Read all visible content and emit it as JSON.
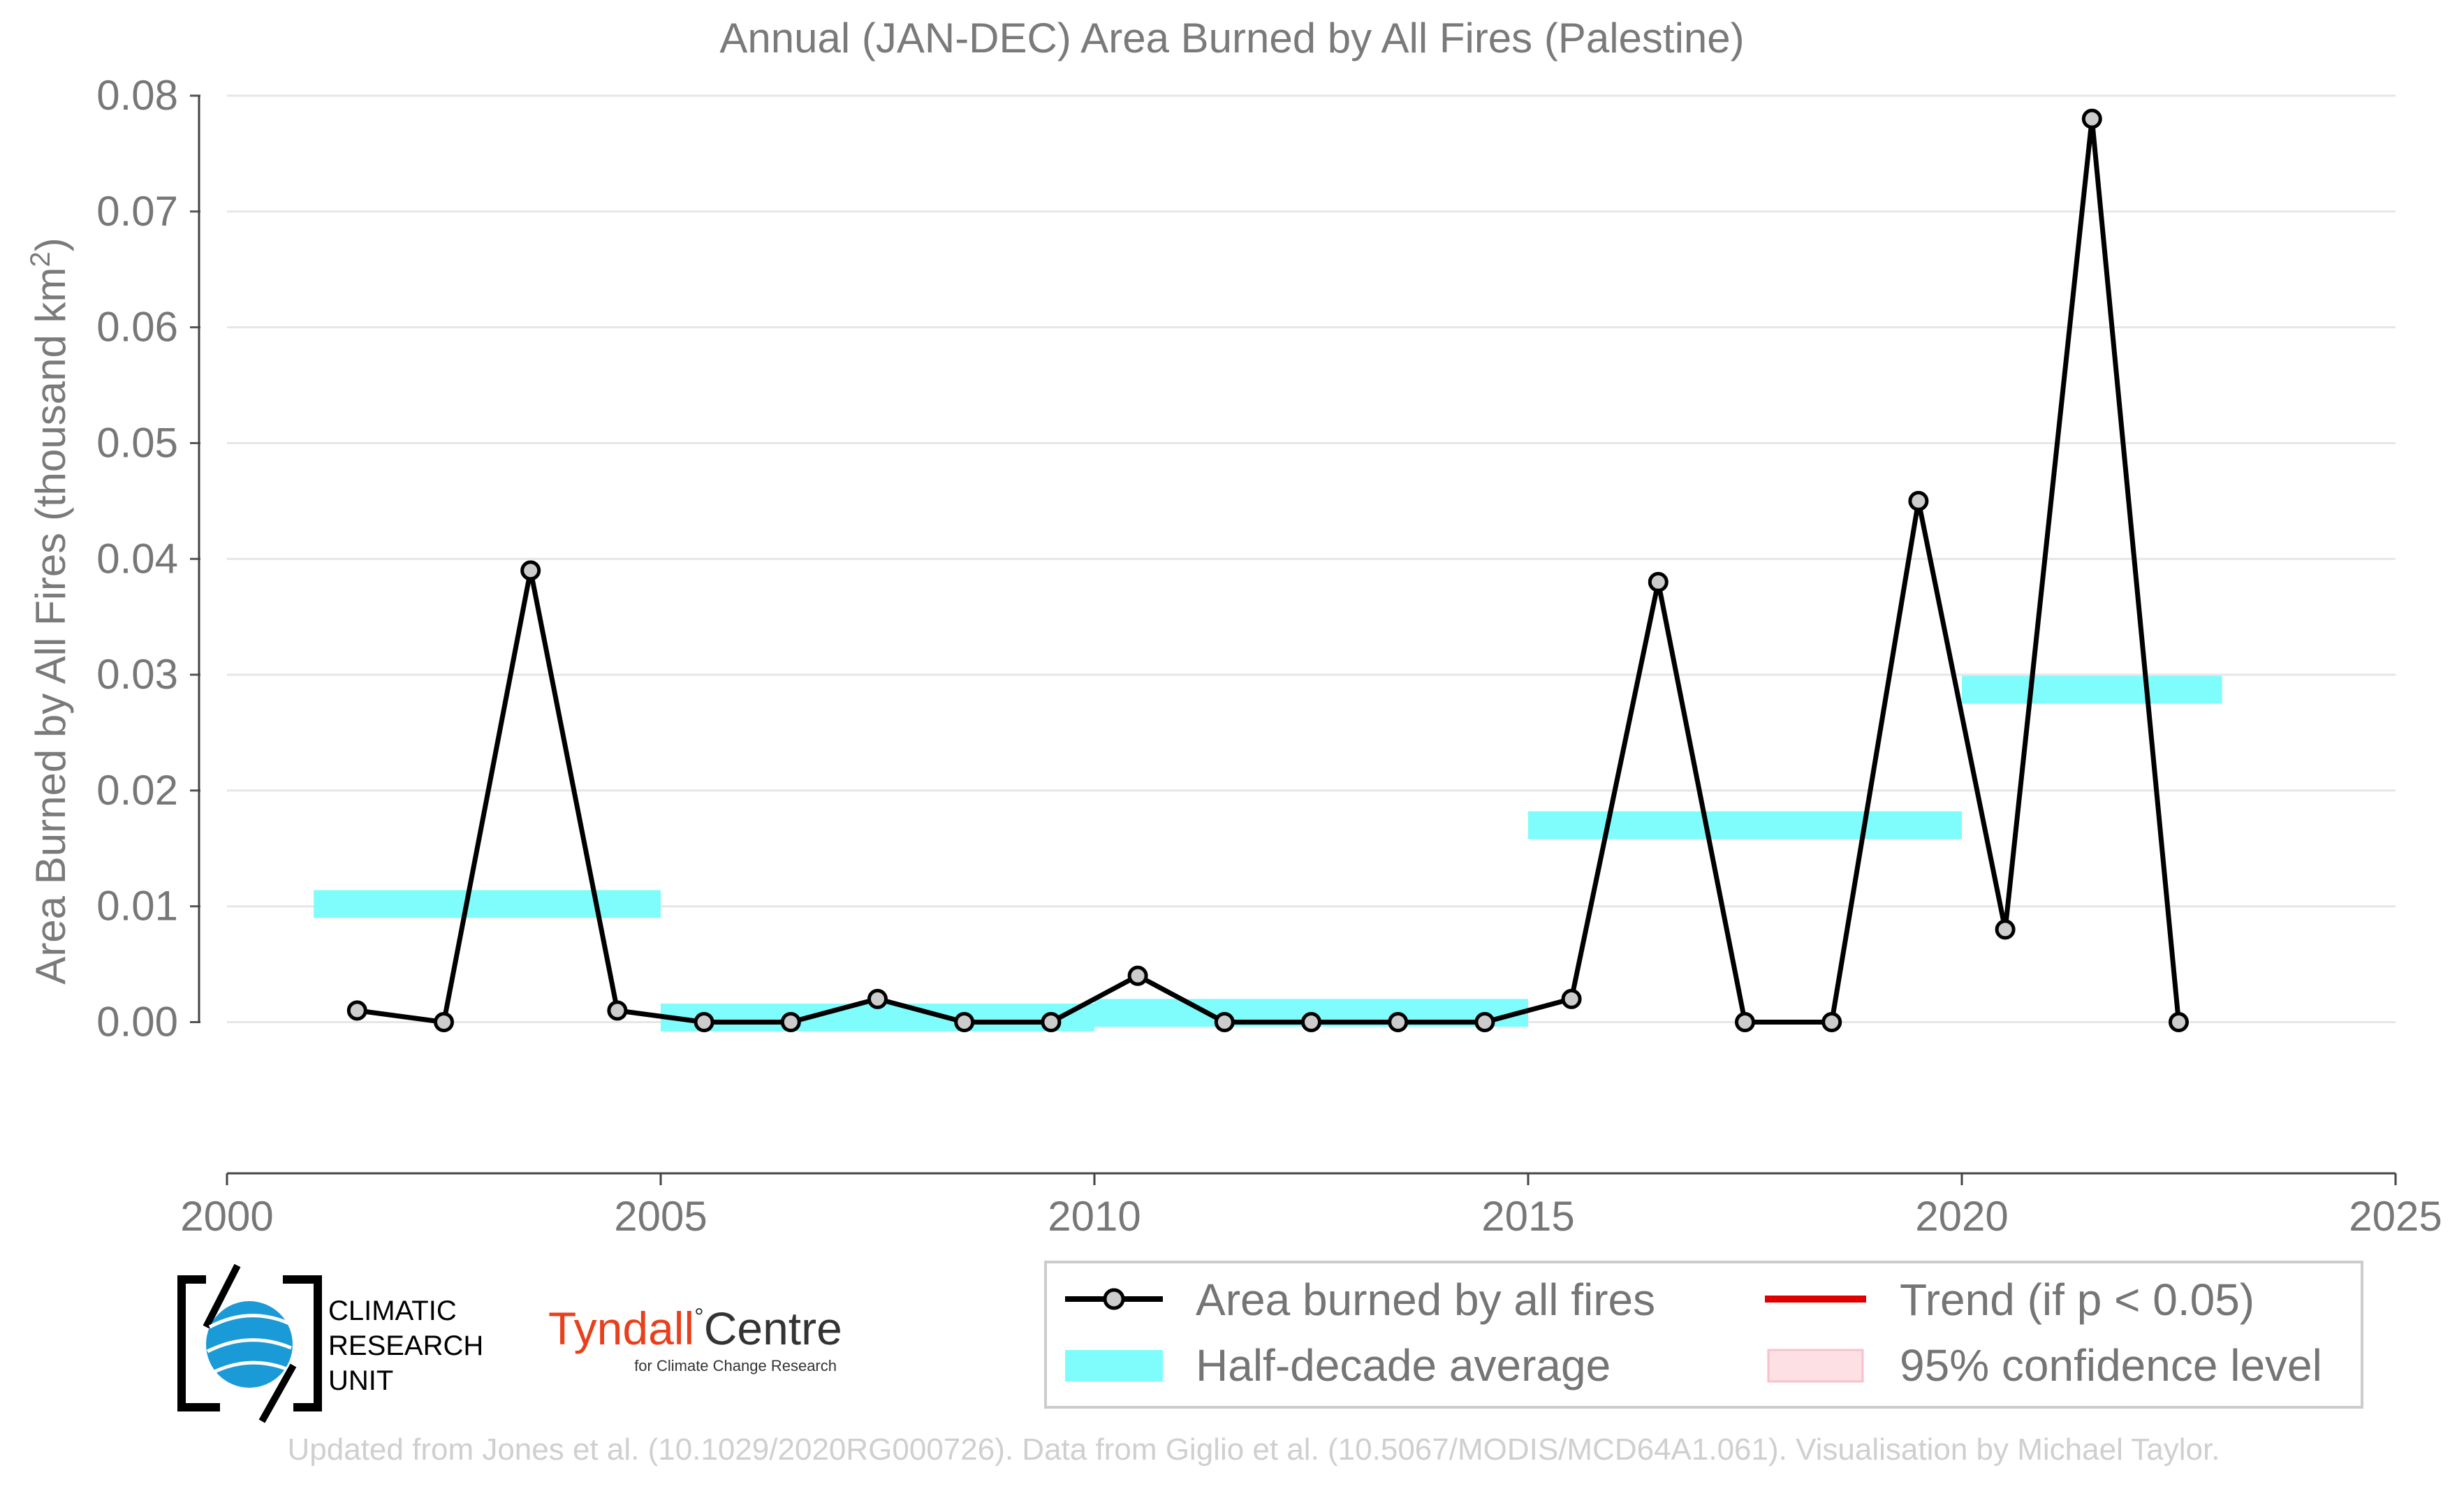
{
  "chart_data": {
    "type": "line",
    "title": "Annual (JAN-DEC) Area Burned by All Fires (Palestine)",
    "xlabel": "",
    "ylabel": "Area Burned by All Fires (thousand km",
    "ylabel_sup": "2",
    "ylabel_close": ")",
    "xlim": [
      2000,
      2025
    ],
    "ylim": [
      -0.006,
      0.08
    ],
    "x_ticks": [
      2000,
      2005,
      2010,
      2015,
      2020,
      2025
    ],
    "x_tick_labels": [
      "2000",
      "2005",
      "2010",
      "2015",
      "2020",
      "2025"
    ],
    "y_ticks": [
      0,
      0.01,
      0.02,
      0.03,
      0.04,
      0.05,
      0.06,
      0.07,
      0.08
    ],
    "y_tick_labels": [
      "0.00",
      "0.01",
      "0.02",
      "0.03",
      "0.04",
      "0.05",
      "0.06",
      "0.07",
      "0.08"
    ],
    "grid": "horizontal",
    "series": [
      {
        "name": "Area burned by all fires",
        "color": "#000000",
        "marker_fill": "#cccccc",
        "x": [
          2001.5,
          2002.5,
          2003.5,
          2004.5,
          2005.5,
          2006.5,
          2007.5,
          2008.5,
          2009.5,
          2010.5,
          2011.5,
          2012.5,
          2013.5,
          2014.5,
          2015.5,
          2016.5,
          2017.5,
          2018.5,
          2019.5,
          2020.5,
          2021.5,
          2022.5
        ],
        "y": [
          0.001,
          0.0,
          0.039,
          0.001,
          0.0,
          0.0,
          0.002,
          0.0,
          0.0,
          0.004,
          0.0,
          0.0,
          0.0,
          0.0,
          0.002,
          0.038,
          0.0,
          0.0,
          0.045,
          0.008,
          0.078,
          0.0
        ]
      }
    ],
    "half_decade_averages": {
      "name": "Half-decade average",
      "color": "#7ffcfc",
      "segments": [
        {
          "x0": 2001,
          "x1": 2005,
          "value": 0.0102
        },
        {
          "x0": 2005,
          "x1": 2010,
          "value": 0.0004
        },
        {
          "x0": 2010,
          "x1": 2015,
          "value": 0.0008
        },
        {
          "x0": 2015,
          "x1": 2020,
          "value": 0.017
        },
        {
          "x0": 2020,
          "x1": 2023,
          "value": 0.0287
        }
      ]
    },
    "legend": {
      "placement": "bottom-right",
      "entries": [
        {
          "label": "Area burned by all fires",
          "kind": "line-marker",
          "color": "#000000"
        },
        {
          "label": "Trend (if p < 0.05)",
          "kind": "line",
          "color": "#e00000"
        },
        {
          "label": "Half-decade average",
          "kind": "band",
          "color": "#7ffcfc"
        },
        {
          "label": "95% confidence level",
          "kind": "band",
          "color": "#fde0e4"
        }
      ]
    }
  },
  "logos": {
    "cru_line1": "CLIMATIC",
    "cru_line2": "RESEARCH",
    "cru_line3": "UNIT",
    "tyndall_name": "Tyndall",
    "tyndall_degree": "°",
    "tyndall_centre": "Centre",
    "tyndall_sub": "for Climate Change Research"
  },
  "footer": "Updated from Jones et al. (10.1029/2020RG000726). Data from Giglio et al. (10.5067/MODIS/MCD64A1.061). Visualisation by Michael Taylor."
}
